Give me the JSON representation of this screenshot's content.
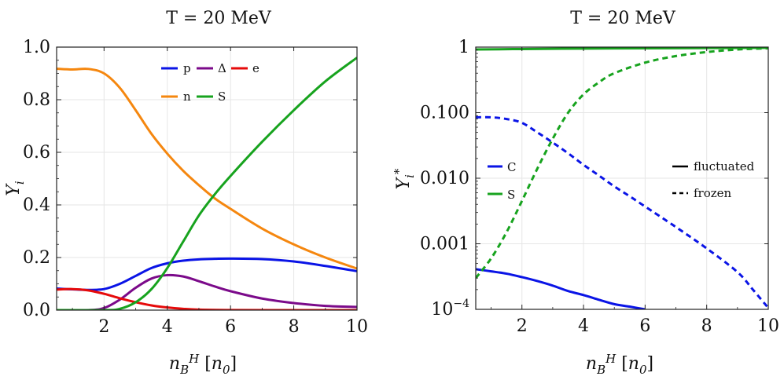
{
  "chart_data": [
    {
      "type": "line",
      "title": "T = 20 MeV",
      "xlabel": "n_B^H [n_0]",
      "ylabel": "Y_i",
      "xlim": [
        0.5,
        10
      ],
      "ylim": [
        0,
        1.0
      ],
      "x_ticks": [
        2,
        4,
        6,
        8,
        10
      ],
      "x_tick_labels": [
        "2",
        "4",
        "6",
        "8",
        "10"
      ],
      "y_ticks": [
        0,
        0.2,
        0.4,
        0.6,
        0.8,
        1.0
      ],
      "y_tick_labels": [
        "0.0",
        "0.2",
        "0.4",
        "0.6",
        "0.8",
        "1.0"
      ],
      "grid": true,
      "legend_position": "top-center",
      "series": [
        {
          "name": "p",
          "color": "#0a14e6",
          "style": "solid",
          "points": [
            [
              0.5,
              0.082
            ],
            [
              1,
              0.079
            ],
            [
              1.5,
              0.077
            ],
            [
              2,
              0.08
            ],
            [
              2.5,
              0.1
            ],
            [
              3,
              0.13
            ],
            [
              3.5,
              0.16
            ],
            [
              4,
              0.178
            ],
            [
              4.5,
              0.188
            ],
            [
              5,
              0.193
            ],
            [
              5.5,
              0.195
            ],
            [
              6,
              0.196
            ],
            [
              7,
              0.194
            ],
            [
              8,
              0.185
            ],
            [
              9,
              0.168
            ],
            [
              10,
              0.148
            ]
          ]
        },
        {
          "name": "Δ",
          "color": "#7b0a8a",
          "style": "solid",
          "points": [
            [
              0.5,
              0
            ],
            [
              1.5,
              0
            ],
            [
              2,
              0.008
            ],
            [
              2.5,
              0.04
            ],
            [
              3,
              0.085
            ],
            [
              3.5,
              0.12
            ],
            [
              4,
              0.133
            ],
            [
              4.5,
              0.128
            ],
            [
              5,
              0.11
            ],
            [
              5.5,
              0.09
            ],
            [
              6,
              0.072
            ],
            [
              7,
              0.044
            ],
            [
              8,
              0.027
            ],
            [
              9,
              0.016
            ],
            [
              10,
              0.012
            ]
          ]
        },
        {
          "name": "e",
          "color": "#e60a0a",
          "style": "solid",
          "points": [
            [
              0.5,
              0.078
            ],
            [
              1,
              0.08
            ],
            [
              1.5,
              0.075
            ],
            [
              2,
              0.062
            ],
            [
              2.5,
              0.045
            ],
            [
              3,
              0.03
            ],
            [
              3.5,
              0.018
            ],
            [
              4,
              0.01
            ],
            [
              4.5,
              0.005
            ],
            [
              5,
              0.002
            ],
            [
              6,
              0.0005
            ],
            [
              8,
              0
            ],
            [
              10,
              0
            ]
          ]
        },
        {
          "name": "n",
          "color": "#f5870f",
          "style": "solid",
          "points": [
            [
              0.5,
              0.918
            ],
            [
              1,
              0.915
            ],
            [
              1.5,
              0.917
            ],
            [
              2,
              0.9
            ],
            [
              2.5,
              0.845
            ],
            [
              3,
              0.76
            ],
            [
              3.5,
              0.67
            ],
            [
              4,
              0.595
            ],
            [
              4.5,
              0.53
            ],
            [
              5,
              0.475
            ],
            [
              5.5,
              0.425
            ],
            [
              6,
              0.385
            ],
            [
              7,
              0.31
            ],
            [
              8,
              0.25
            ],
            [
              9,
              0.2
            ],
            [
              10,
              0.158
            ]
          ]
        },
        {
          "name": "S",
          "color": "#17a31e",
          "style": "solid",
          "points": [
            [
              0.5,
              0
            ],
            [
              2,
              0
            ],
            [
              2.5,
              0.005
            ],
            [
              3,
              0.03
            ],
            [
              3.5,
              0.08
            ],
            [
              4,
              0.16
            ],
            [
              4.5,
              0.26
            ],
            [
              5,
              0.36
            ],
            [
              5.5,
              0.44
            ],
            [
              6,
              0.51
            ],
            [
              7,
              0.64
            ],
            [
              8,
              0.76
            ],
            [
              9,
              0.87
            ],
            [
              10,
              0.96
            ]
          ]
        }
      ]
    },
    {
      "type": "line",
      "title": "T = 20 MeV",
      "xlabel": "n_B^H [n_0]",
      "ylabel": "Y_i^*",
      "yscale": "log",
      "xlim": [
        0.5,
        10
      ],
      "ylim": [
        0.0001,
        1
      ],
      "x_ticks": [
        2,
        4,
        6,
        8,
        10
      ],
      "x_tick_labels": [
        "2",
        "4",
        "6",
        "8",
        "10"
      ],
      "y_ticks": [
        0.0001,
        0.001,
        0.01,
        0.1,
        1
      ],
      "y_tick_labels": [
        "10^-4",
        "0.001",
        "0.010",
        "0.100",
        "1"
      ],
      "grid": true,
      "legend_position": "left-center",
      "series": [
        {
          "name": "C fluctuated",
          "color": "#0a14e6",
          "style": "solid",
          "points": [
            [
              0.5,
              0.00041
            ],
            [
              1,
              0.00038
            ],
            [
              1.5,
              0.00035
            ],
            [
              2,
              0.00031
            ],
            [
              2.5,
              0.00027
            ],
            [
              3,
              0.00023
            ],
            [
              3.5,
              0.00019
            ],
            [
              4,
              0.000165
            ],
            [
              4.5,
              0.00014
            ],
            [
              5,
              0.00012
            ],
            [
              5.5,
              0.00011
            ],
            [
              6,
              0.0001
            ]
          ]
        },
        {
          "name": "C frozen",
          "color": "#0a14e6",
          "style": "dashed",
          "points": [
            [
              0.5,
              0.085
            ],
            [
              1,
              0.085
            ],
            [
              1.5,
              0.08
            ],
            [
              2,
              0.07
            ],
            [
              2.5,
              0.05
            ],
            [
              3,
              0.035
            ],
            [
              3.5,
              0.024
            ],
            [
              4,
              0.016
            ],
            [
              4.5,
              0.011
            ],
            [
              5,
              0.0075
            ],
            [
              5.5,
              0.0053
            ],
            [
              6,
              0.0037
            ],
            [
              7,
              0.0018
            ],
            [
              8,
              0.00085
            ],
            [
              9,
              0.00037
            ],
            [
              9.5,
              0.0002
            ],
            [
              10,
              0.000105
            ]
          ]
        },
        {
          "name": "S fluctuated",
          "color": "#17a31e",
          "style": "solid",
          "points": [
            [
              0.5,
              0.92
            ],
            [
              2,
              0.935
            ],
            [
              4,
              0.95
            ],
            [
              6,
              0.96
            ],
            [
              8,
              0.968
            ],
            [
              10,
              0.975
            ]
          ]
        },
        {
          "name": "S frozen",
          "color": "#17a31e",
          "style": "dashed",
          "points": [
            [
              0.5,
              0.0003
            ],
            [
              1,
              0.0006
            ],
            [
              1.5,
              0.0015
            ],
            [
              2,
              0.0045
            ],
            [
              2.5,
              0.014
            ],
            [
              3,
              0.04
            ],
            [
              3.5,
              0.1
            ],
            [
              4,
              0.19
            ],
            [
              4.5,
              0.29
            ],
            [
              5,
              0.4
            ],
            [
              6,
              0.58
            ],
            [
              7,
              0.73
            ],
            [
              8,
              0.84
            ],
            [
              9,
              0.92
            ],
            [
              10,
              0.96
            ]
          ]
        }
      ],
      "legend_entries": [
        {
          "label": "C",
          "color": "#0a14e6",
          "style": "solid"
        },
        {
          "label": "S",
          "color": "#17a31e",
          "style": "solid"
        },
        {
          "label": "fluctuated",
          "color": "#000000",
          "style": "solid"
        },
        {
          "label": "frozen",
          "color": "#000000",
          "style": "dashed"
        }
      ]
    }
  ]
}
